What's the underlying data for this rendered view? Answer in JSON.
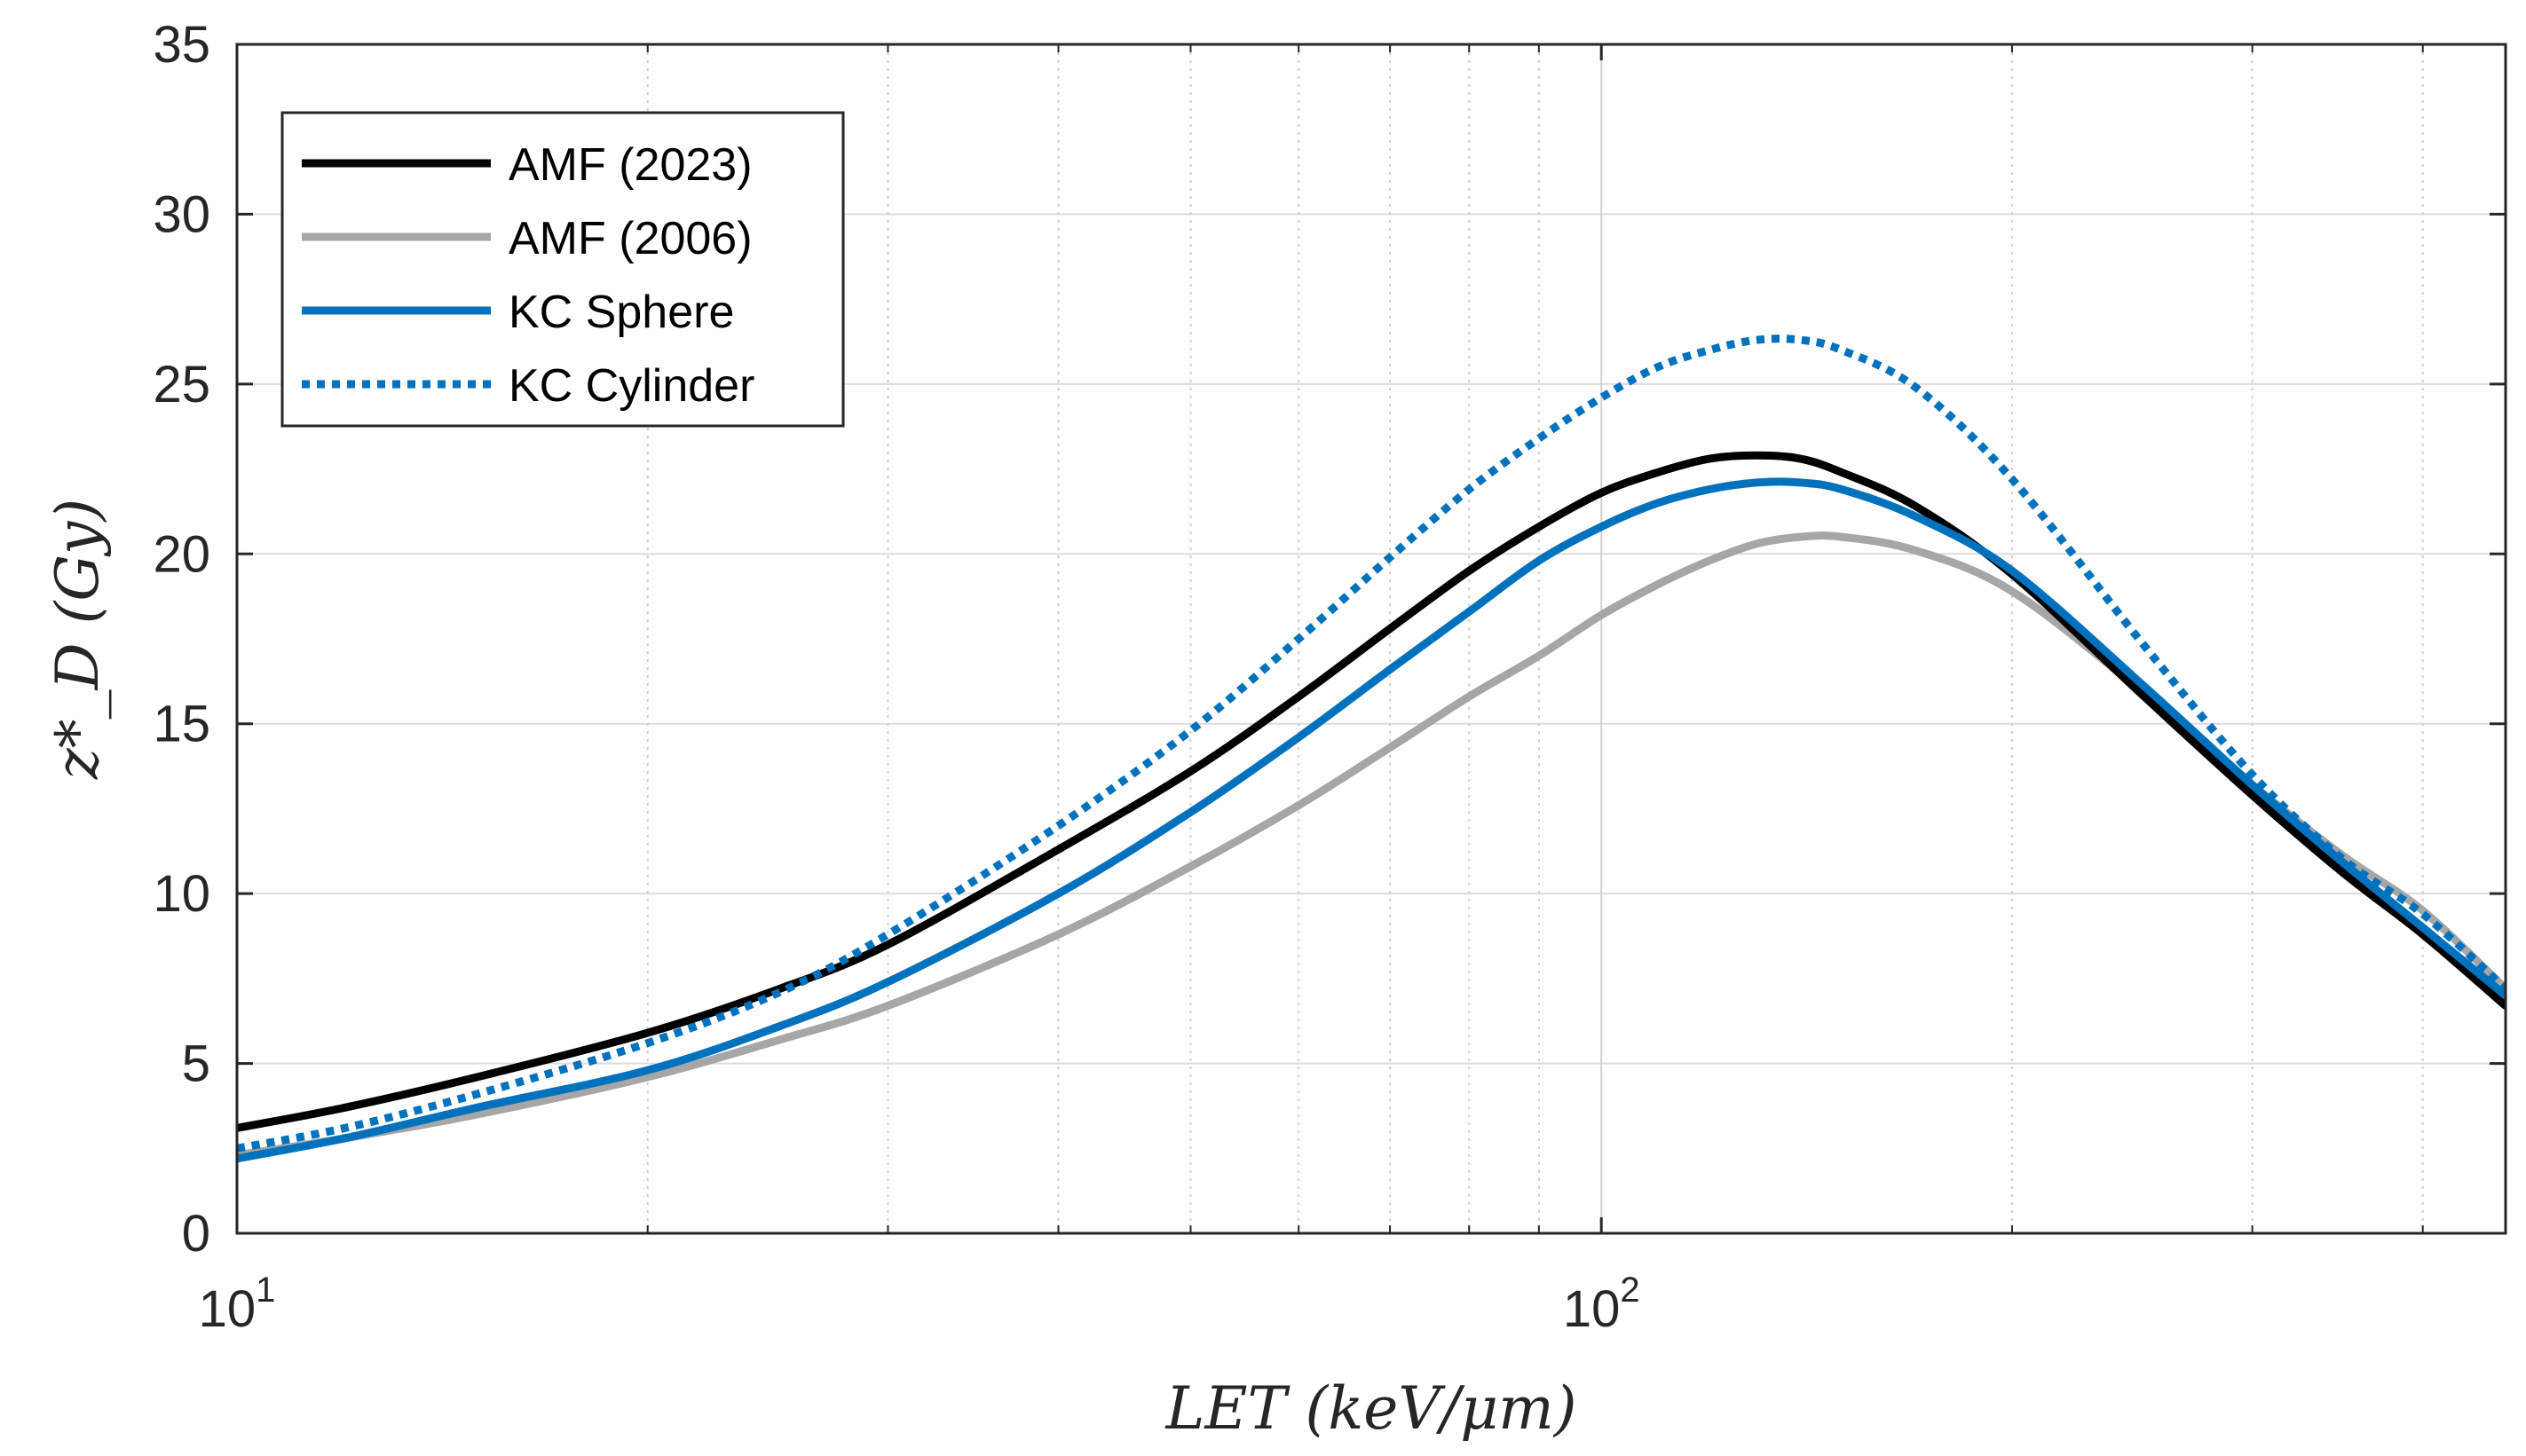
{
  "chart_data": {
    "type": "line",
    "xscale": "log",
    "xlim": [
      10,
      460
    ],
    "ylim": [
      0,
      35
    ],
    "grid": true,
    "legend_position": "top-left",
    "xlabel": "LET (keV/μm)",
    "ylabel": "z*_D (Gy)",
    "x_ticks": [
      {
        "value": 10,
        "base": "10",
        "exp": "1"
      },
      {
        "value": 100,
        "base": "10",
        "exp": "2"
      }
    ],
    "y_ticks": [
      0,
      5,
      10,
      15,
      20,
      25,
      30,
      35
    ],
    "x_minor_grid": [
      20,
      30,
      40,
      50,
      60,
      70,
      80,
      90,
      200,
      300,
      400
    ],
    "series": [
      {
        "name": "AMF (2023)",
        "color": "#000000",
        "style": "solid",
        "x": [
          10,
          12,
          15,
          20,
          25,
          30,
          40,
          50,
          60,
          70,
          80,
          90,
          100,
          110,
          120,
          130,
          140,
          150,
          170,
          200,
          250,
          300,
          350,
          400,
          460
        ],
        "y": [
          3.1,
          3.7,
          4.6,
          5.9,
          7.2,
          8.5,
          11.3,
          13.6,
          15.8,
          17.8,
          19.5,
          20.8,
          21.8,
          22.4,
          22.8,
          22.9,
          22.8,
          22.4,
          21.4,
          19.4,
          15.8,
          12.9,
          10.6,
          8.8,
          6.7
        ]
      },
      {
        "name": "AMF (2006)",
        "color": "#a6a6a6",
        "style": "solid",
        "x": [
          10,
          12,
          15,
          20,
          25,
          30,
          40,
          50,
          60,
          70,
          80,
          90,
          100,
          110,
          120,
          130,
          140,
          150,
          170,
          200,
          250,
          300,
          350,
          400,
          460
        ],
        "y": [
          2.3,
          2.8,
          3.5,
          4.6,
          5.7,
          6.7,
          8.8,
          10.8,
          12.6,
          14.3,
          15.8,
          17.0,
          18.2,
          19.1,
          19.8,
          20.3,
          20.5,
          20.5,
          20.1,
          18.9,
          15.9,
          13.2,
          11.1,
          9.5,
          7.2
        ]
      },
      {
        "name": "KC Sphere",
        "color": "#0072bd",
        "style": "solid",
        "x": [
          10,
          12,
          15,
          20,
          25,
          30,
          40,
          50,
          60,
          70,
          80,
          90,
          100,
          110,
          120,
          130,
          140,
          150,
          170,
          200,
          250,
          300,
          350,
          400,
          460
        ],
        "y": [
          2.2,
          2.8,
          3.7,
          4.8,
          6.1,
          7.4,
          10.0,
          12.4,
          14.6,
          16.6,
          18.3,
          19.8,
          20.8,
          21.5,
          21.9,
          22.1,
          22.1,
          21.9,
          21.1,
          19.5,
          16.1,
          13.2,
          10.9,
          9.0,
          7.0
        ]
      },
      {
        "name": "KC Cylinder",
        "color": "#0072bd",
        "style": "dotted",
        "x": [
          10,
          12,
          15,
          20,
          25,
          30,
          40,
          50,
          60,
          70,
          80,
          90,
          100,
          110,
          120,
          130,
          140,
          150,
          170,
          200,
          250,
          300,
          350,
          400,
          460
        ],
        "y": [
          2.5,
          3.1,
          4.1,
          5.6,
          7.1,
          8.8,
          12.0,
          14.8,
          17.5,
          19.9,
          21.9,
          23.4,
          24.6,
          25.5,
          26.0,
          26.3,
          26.3,
          26.0,
          24.9,
          22.2,
          17.3,
          13.5,
          11.0,
          9.4,
          7.2
        ]
      }
    ]
  }
}
